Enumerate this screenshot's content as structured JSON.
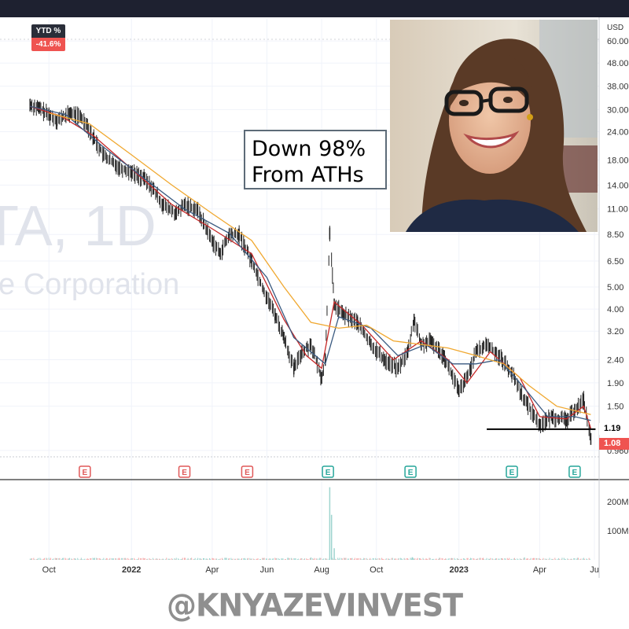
{
  "ticker_watermark": {
    "symbol": "TA, 1D",
    "company": "e Corporation"
  },
  "ytd": {
    "label": "YTD %",
    "value": "-41.6%",
    "color": "#ef5350"
  },
  "annotation": {
    "line1": "Down 98%",
    "line2": "From ATHs"
  },
  "watermark": "@KNYAZEVINVEST",
  "photo": {
    "icon": "portrait-photo"
  },
  "price_tags": [
    {
      "value": "1.19",
      "bg": "#ffffff",
      "fg": "#000000"
    },
    {
      "value": "1.08",
      "bg": "#ef5350",
      "fg": "#ffffff"
    }
  ],
  "chart_data": {
    "type": "candlestick",
    "title": "",
    "currency_label": "USD",
    "scale": "log",
    "y_ticks": [
      60.0,
      48.0,
      38.0,
      30.0,
      24.0,
      18.0,
      14.0,
      11.0,
      8.5,
      6.5,
      5.0,
      4.0,
      3.2,
      2.4,
      1.9,
      1.5,
      0.96
    ],
    "y_tick_labels": [
      "60.00",
      "48.00",
      "38.00",
      "30.00",
      "24.00",
      "18.00",
      "14.00",
      "11.00",
      "8.50",
      "6.50",
      "5.00",
      "4.00",
      "3.20",
      "2.40",
      "1.90",
      "1.50",
      "0.960"
    ],
    "ylim": [
      0.9,
      75
    ],
    "x_ticks": [
      "Oct",
      "2022",
      "Apr",
      "Jun",
      "Aug",
      "Oct",
      "2023",
      "Apr",
      "Ju"
    ],
    "x_tick_dates": [
      "2021-10-01",
      "2022-01-01",
      "2022-04-01",
      "2022-06-01",
      "2022-08-01",
      "2022-10-01",
      "2023-01-01",
      "2023-04-01",
      "2023-06-01"
    ],
    "xlim": [
      "2021-09-01",
      "2023-06-01"
    ],
    "series": [
      {
        "name": "",
        "kind": "price",
        "color": "#222222",
        "points": [
          [
            "2021-09-10",
            31.5
          ],
          [
            "2021-09-20",
            30.5
          ],
          [
            "2021-10-01",
            28.5
          ],
          [
            "2021-10-10",
            27.0
          ],
          [
            "2021-10-25",
            29.0
          ],
          [
            "2021-11-05",
            28.0
          ],
          [
            "2021-11-12",
            26.0
          ],
          [
            "2021-11-20",
            22.5
          ],
          [
            "2021-12-01",
            19.0
          ],
          [
            "2021-12-15",
            17.0
          ],
          [
            "2022-01-01",
            16.0
          ],
          [
            "2022-01-15",
            15.0
          ],
          [
            "2022-01-25",
            13.5
          ],
          [
            "2022-02-05",
            11.5
          ],
          [
            "2022-02-20",
            10.5
          ],
          [
            "2022-03-01",
            11.5
          ],
          [
            "2022-03-15",
            11.0
          ],
          [
            "2022-04-01",
            8.0
          ],
          [
            "2022-04-10",
            7.0
          ],
          [
            "2022-04-20",
            8.5
          ],
          [
            "2022-05-01",
            8.5
          ],
          [
            "2022-05-15",
            6.5
          ],
          [
            "2022-06-01",
            4.5
          ],
          [
            "2022-06-10",
            3.8
          ],
          [
            "2022-06-20",
            3.0
          ],
          [
            "2022-07-01",
            2.2
          ],
          [
            "2022-07-10",
            2.6
          ],
          [
            "2022-07-20",
            2.8
          ],
          [
            "2022-08-01",
            2.0
          ],
          [
            "2022-08-05",
            2.4
          ],
          [
            "2022-08-10",
            8.6
          ],
          [
            "2022-08-15",
            4.2
          ],
          [
            "2022-08-25",
            3.8
          ],
          [
            "2022-09-10",
            3.5
          ],
          [
            "2022-09-25",
            2.8
          ],
          [
            "2022-10-10",
            2.4
          ],
          [
            "2022-10-25",
            2.2
          ],
          [
            "2022-11-05",
            2.6
          ],
          [
            "2022-11-12",
            3.6
          ],
          [
            "2022-11-20",
            2.8
          ],
          [
            "2022-12-01",
            2.9
          ],
          [
            "2022-12-15",
            2.5
          ],
          [
            "2023-01-01",
            1.75
          ],
          [
            "2023-01-10",
            2.0
          ],
          [
            "2023-01-20",
            2.6
          ],
          [
            "2023-02-01",
            2.8
          ],
          [
            "2023-02-15",
            2.5
          ],
          [
            "2023-03-01",
            2.1
          ],
          [
            "2023-03-15",
            1.6
          ],
          [
            "2023-04-01",
            1.25
          ],
          [
            "2023-04-15",
            1.35
          ],
          [
            "2023-05-01",
            1.3
          ],
          [
            "2023-05-10",
            1.45
          ],
          [
            "2023-05-20",
            1.6
          ],
          [
            "2023-05-28",
            1.08
          ]
        ]
      },
      {
        "name": "",
        "kind": "ma-fast",
        "color": "#c62828",
        "points": [
          [
            "2021-09-10",
            31.0
          ],
          [
            "2021-10-15",
            28.0
          ],
          [
            "2021-11-20",
            23.0
          ],
          [
            "2022-01-01",
            16.5
          ],
          [
            "2022-02-15",
            11.5
          ],
          [
            "2022-04-01",
            9.0
          ],
          [
            "2022-05-15",
            7.0
          ],
          [
            "2022-06-20",
            3.6
          ],
          [
            "2022-07-15",
            2.5
          ],
          [
            "2022-08-01",
            2.2
          ],
          [
            "2022-08-15",
            4.3
          ],
          [
            "2022-09-15",
            3.4
          ],
          [
            "2022-10-20",
            2.4
          ],
          [
            "2022-11-20",
            2.9
          ],
          [
            "2022-12-20",
            2.4
          ],
          [
            "2023-01-10",
            1.9
          ],
          [
            "2023-02-05",
            2.6
          ],
          [
            "2023-03-10",
            2.0
          ],
          [
            "2023-04-01",
            1.35
          ],
          [
            "2023-05-01",
            1.32
          ],
          [
            "2023-05-20",
            1.5
          ],
          [
            "2023-05-28",
            1.2
          ]
        ]
      },
      {
        "name": "",
        "kind": "ma-mid",
        "color": "#3a5a80",
        "points": [
          [
            "2021-09-10",
            31.0
          ],
          [
            "2021-10-20",
            28.5
          ],
          [
            "2021-12-01",
            20.5
          ],
          [
            "2022-01-15",
            15.0
          ],
          [
            "2022-03-01",
            11.0
          ],
          [
            "2022-04-20",
            8.6
          ],
          [
            "2022-06-01",
            5.5
          ],
          [
            "2022-07-01",
            3.0
          ],
          [
            "2022-08-05",
            2.3
          ],
          [
            "2022-08-20",
            3.7
          ],
          [
            "2022-09-25",
            3.3
          ],
          [
            "2022-10-25",
            2.5
          ],
          [
            "2022-11-25",
            2.8
          ],
          [
            "2022-12-25",
            2.3
          ],
          [
            "2023-01-20",
            2.3
          ],
          [
            "2023-02-15",
            2.4
          ],
          [
            "2023-03-15",
            1.8
          ],
          [
            "2023-04-10",
            1.35
          ],
          [
            "2023-05-10",
            1.35
          ],
          [
            "2023-05-28",
            1.3
          ]
        ]
      },
      {
        "name": "",
        "kind": "ma-slow",
        "color": "#f0a830",
        "points": [
          [
            "2021-10-01",
            29.0
          ],
          [
            "2021-11-15",
            26.0
          ],
          [
            "2022-01-01",
            19.0
          ],
          [
            "2022-02-15",
            14.0
          ],
          [
            "2022-04-01",
            10.5
          ],
          [
            "2022-05-15",
            8.0
          ],
          [
            "2022-06-20",
            5.0
          ],
          [
            "2022-07-20",
            3.5
          ],
          [
            "2022-08-20",
            3.3
          ],
          [
            "2022-09-20",
            3.4
          ],
          [
            "2022-10-20",
            2.9
          ],
          [
            "2022-11-20",
            2.8
          ],
          [
            "2022-12-20",
            2.7
          ],
          [
            "2023-01-20",
            2.5
          ],
          [
            "2023-02-20",
            2.3
          ],
          [
            "2023-03-20",
            1.85
          ],
          [
            "2023-04-20",
            1.5
          ],
          [
            "2023-05-28",
            1.38
          ]
        ]
      }
    ],
    "support_line": {
      "value": 1.19,
      "from": "2023-02-01",
      "to": "2023-05-28"
    },
    "earnings_markers": [
      {
        "label": "E",
        "date": "2021-11-10",
        "status": "miss"
      },
      {
        "label": "E",
        "date": "2022-03-01",
        "status": "miss"
      },
      {
        "label": "E",
        "date": "2022-05-10",
        "status": "miss"
      },
      {
        "label": "E",
        "date": "2022-08-08",
        "status": "beat"
      },
      {
        "label": "E",
        "date": "2022-11-08",
        "status": "beat"
      },
      {
        "label": "E",
        "date": "2023-03-01",
        "status": "beat"
      },
      {
        "label": "E",
        "date": "2023-05-10",
        "status": "beat"
      }
    ],
    "volume": {
      "y_tick_labels": [
        "200M",
        "100M"
      ],
      "y_ticks": [
        200,
        100
      ],
      "ylim": [
        0,
        260
      ],
      "spikes": [
        [
          "2022-08-10",
          250
        ],
        [
          "2022-08-12",
          155
        ],
        [
          "2022-08-15",
          40
        ],
        [
          "2022-07-20",
          8
        ],
        [
          "2022-11-10",
          9
        ],
        [
          "2023-03-15",
          8
        ]
      ]
    }
  }
}
